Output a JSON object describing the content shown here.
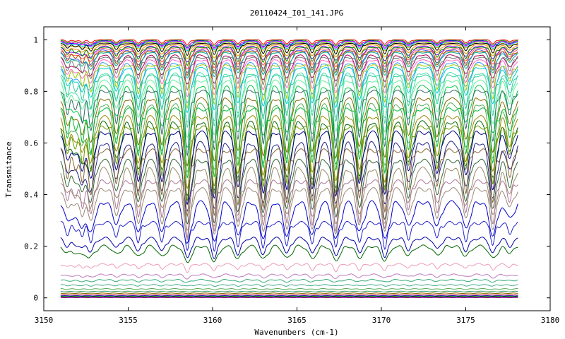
{
  "chart_data": {
    "type": "line",
    "title": "20110424_I01_141.JPG",
    "xlabel": "Wavenumbers (cm-1)",
    "ylabel": "Transmitance",
    "xlim": [
      3150,
      3180
    ],
    "ylim": [
      -0.05,
      1.05
    ],
    "x_ticks": [
      3150,
      3155,
      3160,
      3165,
      3170,
      3175,
      3180
    ],
    "y_ticks": [
      0,
      0.2,
      0.4,
      0.6,
      0.8,
      1
    ],
    "y_tick_labels": [
      "0",
      "0.2",
      "0.4",
      "0.6",
      "0.8",
      "1"
    ],
    "grid": false,
    "legend": "none",
    "x_data_range": [
      3151.0,
      3178.1
    ],
    "absorption_lines": [
      {
        "x": 3151.4,
        "depth": 0.35
      },
      {
        "x": 3151.9,
        "depth": 0.25
      },
      {
        "x": 3152.3,
        "depth": 0.4
      },
      {
        "x": 3152.8,
        "depth": 0.55
      },
      {
        "x": 3154.3,
        "depth": 0.45
      },
      {
        "x": 3155.6,
        "depth": 0.6
      },
      {
        "x": 3157.0,
        "depth": 0.6
      },
      {
        "x": 3158.5,
        "depth": 0.9
      },
      {
        "x": 3160.1,
        "depth": 0.85
      },
      {
        "x": 3161.5,
        "depth": 0.7
      },
      {
        "x": 3163.0,
        "depth": 0.75
      },
      {
        "x": 3164.4,
        "depth": 0.7
      },
      {
        "x": 3165.9,
        "depth": 0.7
      },
      {
        "x": 3167.3,
        "depth": 0.8
      },
      {
        "x": 3168.7,
        "depth": 0.65
      },
      {
        "x": 3170.2,
        "depth": 0.8
      },
      {
        "x": 3171.6,
        "depth": 0.5
      },
      {
        "x": 3173.3,
        "depth": 0.5
      },
      {
        "x": 3175.0,
        "depth": 0.55
      },
      {
        "x": 3176.6,
        "depth": 0.7
      },
      {
        "x": 3177.6,
        "depth": 0.35
      }
    ],
    "series": [
      {
        "baseline": 1.0,
        "color": "#ff0000"
      },
      {
        "baseline": 0.998,
        "color": "#00aa00"
      },
      {
        "baseline": 0.996,
        "color": "#0000ff"
      },
      {
        "baseline": 0.994,
        "color": "#ff00ff"
      },
      {
        "baseline": 0.992,
        "color": "#00cccc"
      },
      {
        "baseline": 0.99,
        "color": "#ccaa00"
      },
      {
        "baseline": 0.985,
        "color": "#000000"
      },
      {
        "baseline": 0.98,
        "color": "#ff8800"
      },
      {
        "baseline": 0.975,
        "color": "#8800ff"
      },
      {
        "baseline": 0.97,
        "color": "#008800"
      },
      {
        "baseline": 0.965,
        "color": "#ff5555"
      },
      {
        "baseline": 0.96,
        "color": "#5555ff"
      },
      {
        "baseline": 0.955,
        "color": "#aa5500"
      },
      {
        "baseline": 0.95,
        "color": "#00aa88"
      },
      {
        "baseline": 0.94,
        "color": "#aa0055"
      },
      {
        "baseline": 0.93,
        "color": "#777777"
      },
      {
        "baseline": 0.92,
        "color": "#ff66cc"
      },
      {
        "baseline": 0.91,
        "color": "#3399ff"
      },
      {
        "baseline": 0.9,
        "color": "#99cc00"
      },
      {
        "baseline": 0.89,
        "color": "#00cccc"
      },
      {
        "baseline": 0.87,
        "color": "#44ddaa"
      },
      {
        "baseline": 0.86,
        "color": "#33cc99"
      },
      {
        "baseline": 0.84,
        "color": "#66ee99"
      },
      {
        "baseline": 0.82,
        "color": "#00cc44"
      },
      {
        "baseline": 0.8,
        "color": "#336666"
      },
      {
        "baseline": 0.77,
        "color": "#886600"
      },
      {
        "baseline": 0.75,
        "color": "#55aa55"
      },
      {
        "baseline": 0.73,
        "color": "#00bb33"
      },
      {
        "baseline": 0.7,
        "color": "#998800"
      },
      {
        "baseline": 0.68,
        "color": "#006600"
      },
      {
        "baseline": 0.66,
        "color": "#669900"
      },
      {
        "baseline": 0.64,
        "color": "#000088"
      },
      {
        "baseline": 0.6,
        "color": "#222288"
      },
      {
        "baseline": 0.57,
        "color": "#886633"
      },
      {
        "baseline": 0.53,
        "color": "#336633"
      },
      {
        "baseline": 0.5,
        "color": "#998866"
      },
      {
        "baseline": 0.45,
        "color": "#aa7799"
      },
      {
        "baseline": 0.42,
        "color": "#998877"
      },
      {
        "baseline": 0.37,
        "color": "#0000cc"
      },
      {
        "baseline": 0.29,
        "color": "#2222cc"
      },
      {
        "baseline": 0.23,
        "color": "#0000aa"
      },
      {
        "baseline": 0.2,
        "color": "#006600"
      },
      {
        "baseline": 0.13,
        "color": "#ee99bb"
      },
      {
        "baseline": 0.09,
        "color": "#bb77bb"
      },
      {
        "baseline": 0.07,
        "color": "#33aa77"
      },
      {
        "baseline": 0.05,
        "color": "#44aa88"
      },
      {
        "baseline": 0.035,
        "color": "#55aa55"
      },
      {
        "baseline": 0.025,
        "color": "#339966"
      },
      {
        "baseline": 0.018,
        "color": "#886600"
      },
      {
        "baseline": 0.012,
        "color": "#cc3333"
      },
      {
        "baseline": 0.008,
        "color": "#0000aa"
      },
      {
        "baseline": 0.005,
        "color": "#00aa00"
      },
      {
        "baseline": 0.003,
        "color": "#000000"
      },
      {
        "baseline": 0.001,
        "color": "#aa00aa"
      }
    ]
  }
}
